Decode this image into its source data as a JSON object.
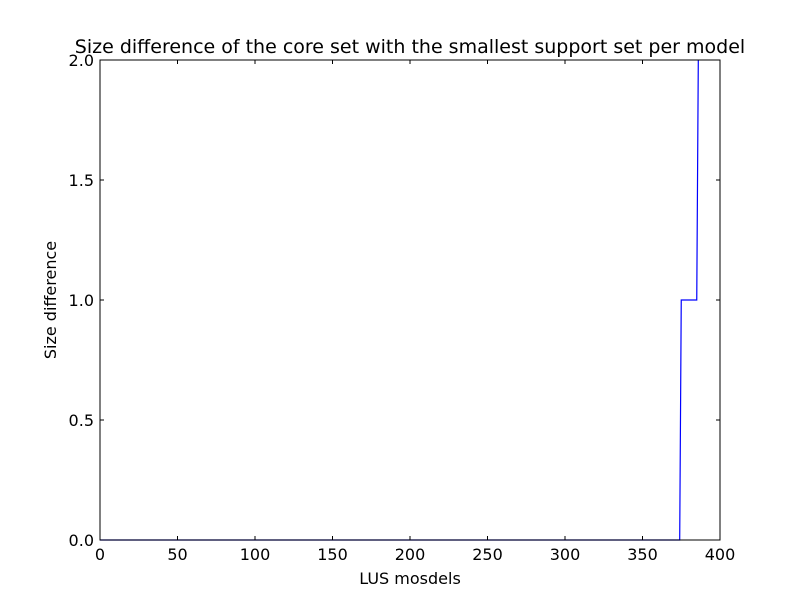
{
  "chart_data": {
    "type": "line",
    "title": "Size difference of the core set with the smallest support set per model",
    "xlabel": "LUS mosdels",
    "ylabel": "Size difference",
    "xlim": [
      0,
      400
    ],
    "ylim": [
      0.0,
      2.0
    ],
    "xticks": [
      0,
      50,
      100,
      150,
      200,
      250,
      300,
      350,
      400
    ],
    "xtick_labels": [
      "0",
      "50",
      "100",
      "150",
      "200",
      "250",
      "300",
      "350",
      "400"
    ],
    "yticks": [
      0.0,
      0.5,
      1.0,
      1.5,
      2.0
    ],
    "ytick_labels": [
      "0.0",
      "0.5",
      "1.0",
      "1.5",
      "2.0"
    ],
    "grid": false,
    "series": [
      {
        "color": "#0000ff",
        "x": [
          0,
          374,
          375,
          385,
          386
        ],
        "y": [
          0,
          0,
          1,
          1,
          2
        ]
      }
    ]
  }
}
